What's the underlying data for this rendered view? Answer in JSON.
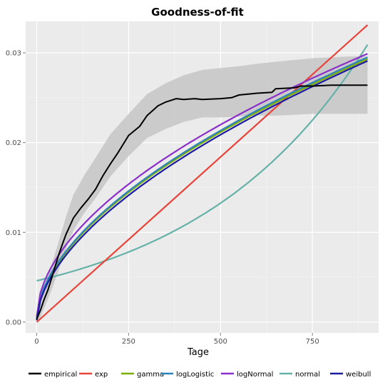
{
  "chart_data": {
    "type": "line",
    "title": "Goodness-of-fit",
    "xlabel": "Tage",
    "ylabel": "",
    "xlim": [
      -30,
      930
    ],
    "ylim": [
      -0.0012,
      0.0335
    ],
    "x_ticks": [
      0,
      250,
      500,
      750
    ],
    "x_tick_labels": [
      "0",
      "250",
      "500",
      "750"
    ],
    "y_ticks": [
      0.0,
      0.01,
      0.02,
      0.03
    ],
    "y_tick_labels": [
      "0.00",
      "0.01",
      "0.02",
      "0.03"
    ],
    "grid": true,
    "legend_position": "bottom",
    "confidence_band": {
      "x": [
        0,
        10,
        20,
        40,
        60,
        80,
        100,
        130,
        160,
        200,
        250,
        300,
        350,
        400,
        450,
        500,
        550,
        600,
        650,
        700,
        750,
        800,
        850,
        900
      ],
      "lower": [
        0.0,
        0.0005,
        0.0015,
        0.0035,
        0.0058,
        0.0082,
        0.0102,
        0.0122,
        0.0138,
        0.0162,
        0.0185,
        0.0205,
        0.0215,
        0.0223,
        0.0228,
        0.0228,
        0.0229,
        0.023,
        0.023,
        0.0231,
        0.0232,
        0.0232,
        0.0232,
        0.0232
      ],
      "upper": [
        0.0012,
        0.0022,
        0.0036,
        0.0063,
        0.009,
        0.0118,
        0.0142,
        0.0164,
        0.0183,
        0.0209,
        0.0232,
        0.0254,
        0.0266,
        0.0275,
        0.0281,
        0.0283,
        0.0285,
        0.0288,
        0.029,
        0.0292,
        0.0294,
        0.0295,
        0.0296,
        0.0296
      ]
    },
    "series": [
      {
        "name": "empirical",
        "color": "#000000",
        "x": [
          0,
          5,
          10,
          20,
          30,
          40,
          50,
          60,
          70,
          80,
          90,
          100,
          120,
          140,
          160,
          180,
          200,
          220,
          250,
          280,
          300,
          330,
          350,
          380,
          400,
          430,
          450,
          500,
          530,
          550,
          600,
          640,
          650,
          700,
          720,
          750,
          800,
          850,
          900
        ],
        "y": [
          0.0003,
          0.0008,
          0.0013,
          0.0025,
          0.0035,
          0.0048,
          0.0062,
          0.0075,
          0.0087,
          0.0098,
          0.0107,
          0.0116,
          0.0127,
          0.0137,
          0.0148,
          0.0163,
          0.0176,
          0.0188,
          0.0208,
          0.0218,
          0.023,
          0.0241,
          0.0245,
          0.0249,
          0.0248,
          0.0249,
          0.0248,
          0.0249,
          0.025,
          0.0253,
          0.0255,
          0.0256,
          0.026,
          0.0261,
          0.0263,
          0.0263,
          0.0264,
          0.0264,
          0.0264
        ]
      },
      {
        "name": "exp",
        "color": "#f8766d",
        "stroke": "#e8443a",
        "x": [
          0,
          900
        ],
        "y": [
          0.0,
          0.0331
        ]
      },
      {
        "name": "gamma",
        "color": "#7cae00",
        "fn": "power",
        "a": 0.029,
        "b": 0.56,
        "c": 0.0003
      },
      {
        "name": "logLogistic",
        "color": "#2b83ba",
        "fn": "power",
        "a": 0.0291,
        "b": 0.56,
        "c": 0.0004
      },
      {
        "name": "logNormal",
        "color": "#8b2fc9",
        "fn": "power",
        "a": 0.0293,
        "b": 0.535,
        "c": 0.0006
      },
      {
        "name": "normal",
        "color": "#66b2a8",
        "fn": "normal",
        "y0": 0.0046,
        "m": 0.0
      },
      {
        "name": "weibull",
        "color": "#1c1ca0",
        "fn": "power",
        "a": 0.0289,
        "b": 0.57,
        "c": 0.0002
      }
    ]
  }
}
